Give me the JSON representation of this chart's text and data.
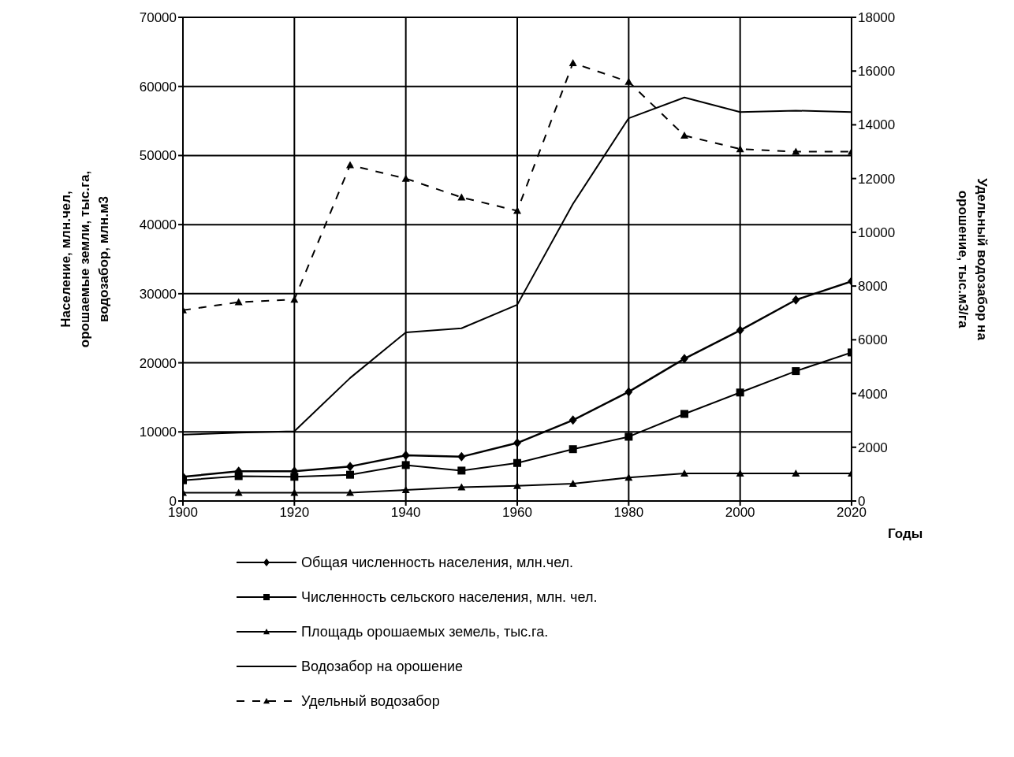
{
  "chart_data": {
    "type": "line",
    "xlabel": "Годы",
    "ylabel": "Население, млн.чел, орошаемые земли, тыс.га, водозабор, млн.м3",
    "y2label": "Удельный водозабор на орошение, тыс.м3/га",
    "x": [
      1900,
      1910,
      1920,
      1930,
      1940,
      1950,
      1960,
      1970,
      1980,
      1990,
      2000,
      2010,
      2020
    ],
    "series": [
      {
        "name": "Общая численность населения, млн.чел.",
        "color": "#000000",
        "marker": "diamond",
        "values": [
          3500,
          4300,
          4300,
          5000,
          6600,
          6400,
          8400,
          11700,
          15800,
          20600,
          24700,
          29100,
          31800
        ]
      },
      {
        "name": "Численность сельского населения, млн. чел.",
        "color": "#000000",
        "marker": "square",
        "values": [
          3000,
          3600,
          3500,
          3800,
          5200,
          4400,
          5500,
          7500,
          9300,
          12600,
          15700,
          18800,
          21500
        ]
      },
      {
        "name": "Площадь орошаемых земель, тыс.га.",
        "color": "#000000",
        "marker": "triangle",
        "values": [
          1200,
          1200,
          1200,
          1200,
          1600,
          2000,
          2200,
          2500,
          3400,
          4000,
          4000,
          4000,
          4000
        ]
      },
      {
        "name": "Водозабор на орошение",
        "color": "#000000",
        "marker": "none",
        "values": [
          9600,
          9900,
          10100,
          17800,
          24400,
          25000,
          28400,
          43000,
          55400,
          58400,
          56300,
          56500,
          56300
        ]
      },
      {
        "name": "Удельный водозабор",
        "color": "#000000",
        "marker": "triangle",
        "line_style": "dashed",
        "axis": "y2",
        "values": [
          7100,
          7400,
          7500,
          12500,
          12000,
          11300,
          10800,
          16300,
          15600,
          13600,
          13100,
          13000,
          13000
        ]
      }
    ],
    "xlim": [
      1900,
      2020
    ],
    "xticks": [
      1900,
      1920,
      1940,
      1960,
      1980,
      2000,
      2020
    ],
    "ylim": [
      0,
      70000
    ],
    "yticks": [
      0,
      10000,
      20000,
      30000,
      40000,
      50000,
      60000,
      70000
    ],
    "y2lim": [
      0,
      18000
    ],
    "y2ticks": [
      0,
      2000,
      4000,
      6000,
      8000,
      10000,
      12000,
      14000,
      16000,
      18000
    ],
    "grid": true,
    "legend": "bottom"
  }
}
